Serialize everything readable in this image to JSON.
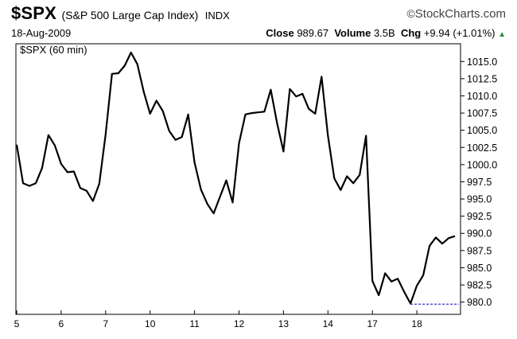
{
  "header": {
    "symbol": "$SPX",
    "name": "(S&P 500 Large Cap Index)",
    "exchange": "INDX",
    "brand": "StockCharts.com",
    "brand_mark": "©",
    "date": "18-Aug-2009",
    "close_label": "Close",
    "close_value": "989.67",
    "volume_label": "Volume",
    "volume_value": "3.5B",
    "chg_label": "Chg",
    "chg_value": "+9.94 (+1.01%)",
    "up_arrow": "▲"
  },
  "chart_data": {
    "type": "line",
    "legend": "$SPX (60 min)",
    "x_tick_labels": [
      "5",
      "6",
      "7",
      "10",
      "11",
      "12",
      "13",
      "14",
      "17",
      "18"
    ],
    "ylim": [
      978.8,
      1017.0
    ],
    "y_ticks": [
      "1015.0",
      "1012.5",
      "1010.0",
      "1007.5",
      "1005.0",
      "1002.5",
      "1000.0",
      "997.5",
      "995.0",
      "992.5",
      "990.0",
      "987.5",
      "985.0",
      "982.5",
      "980.0"
    ],
    "grid": false,
    "y_axis_side": "right",
    "line_color": "#000000",
    "reference_line": {
      "value": 979.7,
      "color": "#3333cc",
      "style": "dashed"
    },
    "series": [
      {
        "values": [
          1002.9,
          997.3,
          996.9,
          997.3,
          999.5,
          1004.3,
          1002.8,
          1000.1,
          998.9,
          999.0,
          996.6,
          996.2,
          994.7,
          997.2,
          1004.4,
          1013.2,
          1013.3,
          1014.4,
          1016.3,
          1014.6,
          1010.6,
          1007.4,
          1009.3,
          1007.8,
          1004.9,
          1003.6,
          1004.0,
          1007.3,
          1000.3,
          996.4,
          994.3,
          992.9,
          995.3,
          997.7,
          994.5,
          1003.1,
          1007.3,
          1007.5,
          1007.6,
          1007.7,
          1010.9,
          1006.0,
          1001.9,
          1011.0,
          1009.9,
          1010.3,
          1008.1,
          1007.4,
          1012.8,
          1004.2,
          998.0,
          996.3,
          998.3,
          997.3,
          998.5,
          1004.2,
          983.1,
          981.0,
          984.2,
          983.0,
          983.4,
          981.5,
          979.8,
          982.4,
          983.9,
          988.2,
          989.4,
          988.5,
          989.3,
          989.6
        ]
      }
    ]
  }
}
